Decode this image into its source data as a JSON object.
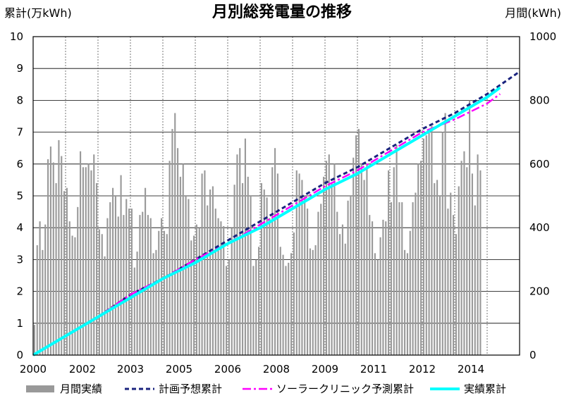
{
  "chart_data": {
    "type": "bar",
    "title": "月別総発電量の推移",
    "y_left_label": "累計(万kWh)",
    "y_right_label": "月間(kWh)",
    "y_left_range": [
      0,
      10
    ],
    "y_right_range": [
      0,
      1000
    ],
    "y_left_ticks": [
      "0",
      "1",
      "2",
      "3",
      "4",
      "5",
      "6",
      "7",
      "8",
      "9",
      "10"
    ],
    "y_right_ticks": [
      "0",
      "200",
      "400",
      "600",
      "800",
      "1000"
    ],
    "x_range": [
      2000.0,
      2015.0
    ],
    "x_tick_labels": [
      "2000",
      "2002",
      "2003",
      "2005",
      "2006",
      "2008",
      "2009",
      "2011",
      "2012",
      "2014"
    ],
    "grid": true,
    "legend_position": "bottom",
    "colors": {
      "bars": "#999999",
      "plan": "#1a237e",
      "forecast": "#ff00ff",
      "actual": "#00ffff"
    },
    "series": [
      {
        "name": "月間実績",
        "kind": "bar",
        "axis": "right",
        "x_start": 2000.0,
        "x_step_months": 1,
        "values": [
          95,
          345,
          420,
          330,
          410,
          615,
          655,
          605,
          540,
          675,
          625,
          515,
          525,
          420,
          375,
          370,
          465,
          640,
          590,
          590,
          600,
          580,
          630,
          540,
          395,
          380,
          310,
          430,
          480,
          525,
          500,
          435,
          565,
          440,
          490,
          460,
          460,
          275,
          325,
          440,
          450,
          525,
          440,
          430,
          320,
          330,
          390,
          430,
          390,
          380,
          610,
          710,
          760,
          650,
          560,
          600,
          500,
          490,
          360,
          375,
          410,
          400,
          570,
          580,
          470,
          520,
          530,
          460,
          430,
          420,
          405,
          280,
          300,
          400,
          535,
          630,
          650,
          540,
          680,
          560,
          500,
          280,
          300,
          340,
          540,
          520,
          495,
          430,
          590,
          650,
          570,
          340,
          315,
          280,
          290,
          320,
          385,
          580,
          570,
          550,
          500,
          460,
          335,
          330,
          345,
          450,
          475,
          560,
          610,
          630,
          540,
          600,
          450,
          380,
          410,
          350,
          485,
          500,
          620,
          690,
          710,
          600,
          550,
          600,
          440,
          420,
          320,
          300,
          370,
          425,
          420,
          580,
          480,
          590,
          660,
          480,
          480,
          330,
          320,
          390,
          480,
          510,
          600,
          610,
          680,
          690,
          700,
          720,
          540,
          550,
          500,
          700,
          760,
          460,
          510,
          440,
          380,
          530,
          610,
          640,
          590,
          800,
          570,
          470,
          630,
          580
        ],
        "_note_values_in_kWh_per_month": true
      },
      {
        "name": "計画予想累計",
        "kind": "line",
        "axis": "left",
        "x": [
          2000.0,
          2001.0,
          2002.0,
          2003.0,
          2004.0,
          2005.0,
          2006.0,
          2007.0,
          2008.0,
          2009.0,
          2010.0,
          2011.0,
          2012.0,
          2013.0,
          2014.0,
          2015.0
        ],
        "values": [
          0.0,
          0.6,
          1.2,
          1.9,
          2.4,
          3.0,
          3.6,
          4.2,
          4.8,
          5.4,
          5.9,
          6.5,
          7.1,
          7.6,
          8.2,
          8.9
        ]
      },
      {
        "name": "ソーラークリニック予測累計",
        "kind": "line",
        "axis": "left",
        "x": [
          2000.0,
          2001.0,
          2002.0,
          2003.0,
          2004.0,
          2005.0,
          2006.0,
          2007.0,
          2008.0,
          2009.0,
          2010.0,
          2011.0,
          2012.0,
          2013.0,
          2014.0,
          2014.4
        ],
        "values": [
          0.0,
          0.6,
          1.2,
          1.9,
          2.4,
          3.0,
          3.5,
          4.1,
          4.7,
          5.3,
          5.8,
          6.4,
          7.0,
          7.4,
          7.9,
          8.2
        ]
      },
      {
        "name": "実績累計",
        "kind": "line",
        "axis": "left",
        "x": [
          2000.0,
          2001.0,
          2002.0,
          2003.0,
          2004.0,
          2005.0,
          2006.0,
          2007.0,
          2008.0,
          2009.0,
          2010.0,
          2011.0,
          2012.0,
          2013.0,
          2014.0,
          2014.4
        ],
        "values": [
          0.0,
          0.6,
          1.2,
          1.8,
          2.4,
          2.9,
          3.5,
          4.0,
          4.6,
          5.2,
          5.7,
          6.3,
          6.9,
          7.5,
          8.1,
          8.4
        ]
      }
    ]
  }
}
